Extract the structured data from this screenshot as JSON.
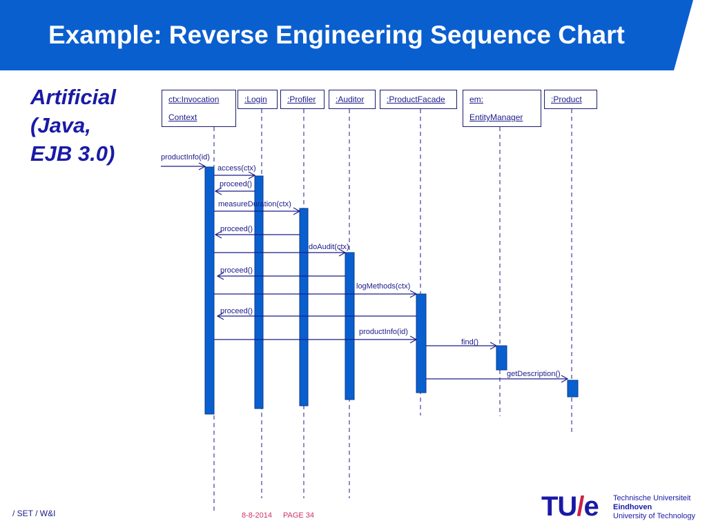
{
  "title": "Example: Reverse Engineering Sequence Chart",
  "side_label": [
    "Artificial",
    "(Java,",
    "EJB 3.0)"
  ],
  "colors": {
    "header_blue": "#0a5fcf",
    "activation_blue": "#0a5fcf",
    "text_navy": "#1a1a8a",
    "accent_red": "#cc2244"
  },
  "objects": [
    {
      "id": "ctx",
      "lines": [
        "ctx:Invocation",
        "Context"
      ]
    },
    {
      "id": "login",
      "lines": [
        ":Login"
      ]
    },
    {
      "id": "profiler",
      "lines": [
        ":Profiler"
      ]
    },
    {
      "id": "auditor",
      "lines": [
        ":Auditor"
      ]
    },
    {
      "id": "facade",
      "lines": [
        ":ProductFacade"
      ]
    },
    {
      "id": "em",
      "lines": [
        "em:",
        "EntityManager"
      ]
    },
    {
      "id": "product",
      "lines": [
        ":Product"
      ]
    }
  ],
  "messages": [
    {
      "label": "productInfo(id)",
      "from": "ext",
      "to": "ctx",
      "kind": "call"
    },
    {
      "label": "access(ctx)",
      "from": "ctx",
      "to": "login",
      "kind": "call"
    },
    {
      "label": "proceed()",
      "from": "login",
      "to": "ctx",
      "kind": "return"
    },
    {
      "label": "measureDuration(ctx)",
      "from": "ctx",
      "to": "profiler",
      "kind": "call"
    },
    {
      "label": "proceed()",
      "from": "profiler",
      "to": "ctx",
      "kind": "return"
    },
    {
      "label": "doAudit(ctx)",
      "from": "ctx",
      "to": "auditor",
      "kind": "call"
    },
    {
      "label": "proceed()",
      "from": "auditor",
      "to": "ctx",
      "kind": "return"
    },
    {
      "label": "logMethods(ctx)",
      "from": "ctx",
      "to": "facade",
      "kind": "call"
    },
    {
      "label": "proceed()",
      "from": "facade",
      "to": "ctx",
      "kind": "return"
    },
    {
      "label": "productInfo(id)",
      "from": "ctx",
      "to": "facade",
      "kind": "call"
    },
    {
      "label": "find()",
      "from": "facade",
      "to": "em",
      "kind": "call"
    },
    {
      "label": "getDescription()",
      "from": "facade",
      "to": "product",
      "kind": "call"
    }
  ],
  "footer": {
    "left": "/ SET / W&I",
    "date": "8-8-2014",
    "page": "PAGE 34"
  },
  "logo": {
    "mark_left": "TU",
    "mark_slash": "/",
    "mark_right": "e",
    "lines": [
      "Technische Universiteit",
      "Eindhoven",
      "University of Technology"
    ]
  }
}
